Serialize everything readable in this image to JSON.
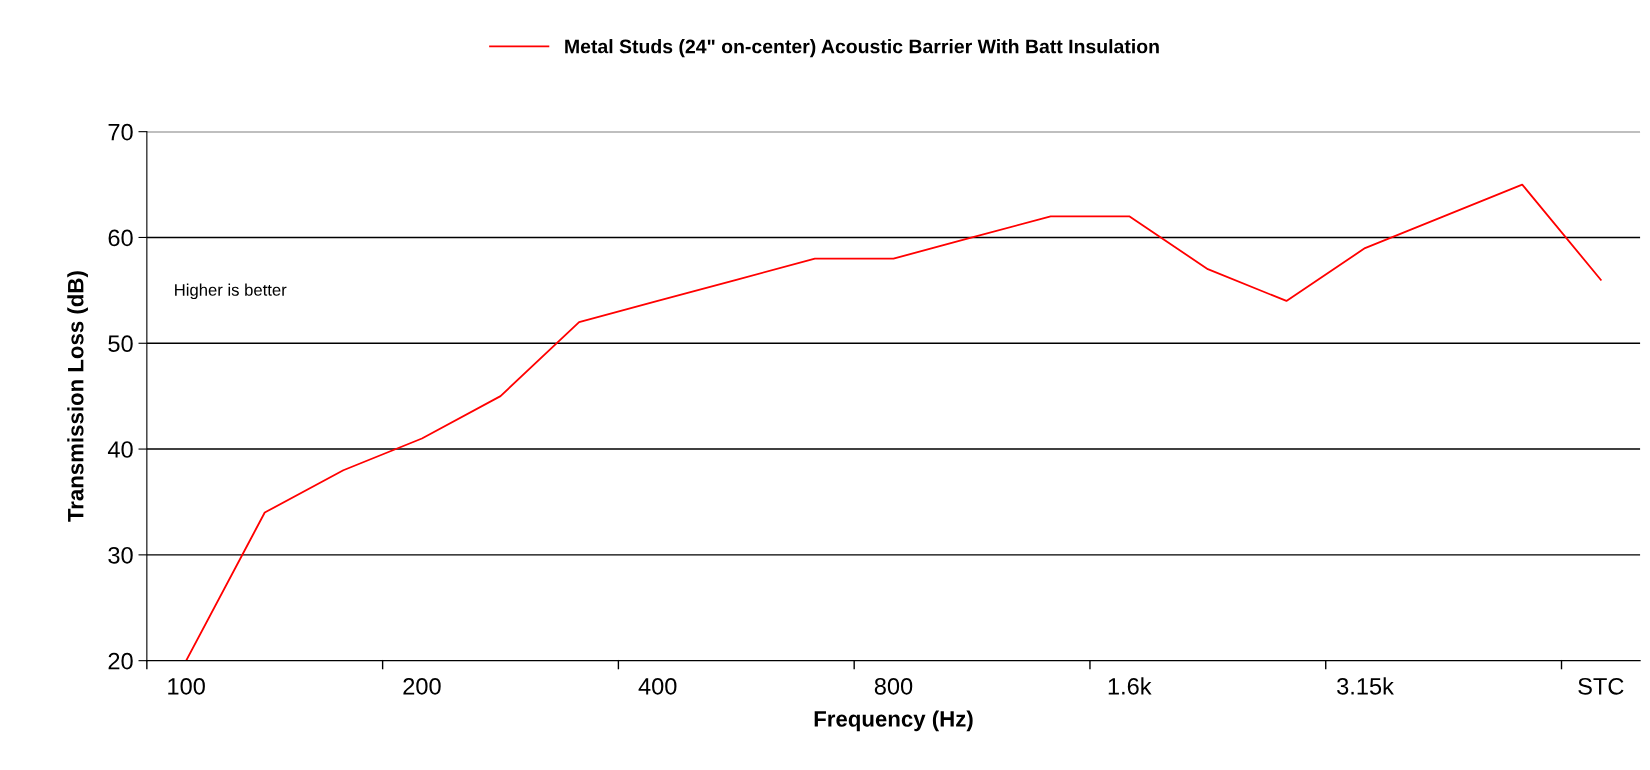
{
  "chart_data": {
    "type": "line",
    "xlabel": "Frequency (Hz)",
    "ylabel": "Transmission Loss (dB)",
    "categories": [
      "100",
      null,
      null,
      "200",
      null,
      null,
      "400",
      null,
      null,
      "800",
      null,
      null,
      "1.6k",
      null,
      null,
      "3.15k",
      null,
      null,
      "STC"
    ],
    "series": [
      {
        "name": "Metal Studs (24\" on-center) Acoustic Barrier With Batt Insulation",
        "color": "#ff0000",
        "values": [
          20,
          34,
          38,
          41,
          45,
          52,
          54,
          56,
          58,
          58,
          60,
          62,
          62,
          57,
          54,
          59,
          62,
          65,
          56
        ]
      }
    ],
    "ylim": [
      20,
      70
    ],
    "yticks": [
      20,
      30,
      40,
      50,
      60,
      70
    ],
    "grid": "y",
    "legend": "top",
    "marker": "none",
    "line_style": "solid",
    "annotations": [
      "Higher is better"
    ]
  }
}
